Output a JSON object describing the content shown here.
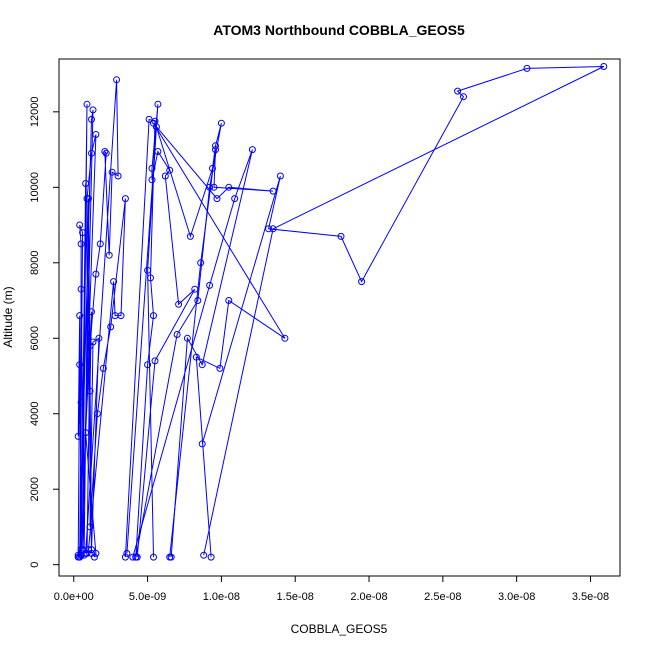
{
  "chart_data": {
    "type": "line",
    "title": "ATOM3 Northbound COBBLA_GEOS5",
    "xlabel": "COBBLA_GEOS5",
    "ylabel": "Altitude (m)",
    "xlim": [
      -1e-09,
      3.7e-08
    ],
    "ylim": [
      -300,
      13400
    ],
    "x_ticks": [
      0,
      5e-09,
      1e-08,
      1.5e-08,
      2e-08,
      2.5e-08,
      3e-08,
      3.5e-08
    ],
    "x_tick_labels": [
      "0.0e+00",
      "5.0e-09",
      "1.0e-08",
      "1.5e-08",
      "2.0e-08",
      "2.5e-08",
      "3.0e-08",
      "3.5e-08"
    ],
    "y_ticks": [
      0,
      2000,
      4000,
      6000,
      8000,
      10000,
      12000
    ],
    "y_tick_labels": [
      "0",
      "2000",
      "4000",
      "6000",
      "8000",
      "10000",
      "12000"
    ],
    "grid": false,
    "legend": "none",
    "colors": {
      "series": "#0000ff",
      "axis": "#000000",
      "background": "#ffffff"
    },
    "series": [
      {
        "values": [
          [
            3e-10,
            200
          ],
          [
            5e-10,
            400
          ],
          [
            5e-10,
            7300
          ],
          [
            7e-10,
            250
          ],
          [
            1e-09,
            9700
          ],
          [
            1.2e-09,
            300
          ],
          [
            8e-10,
            10100
          ],
          [
            5e-10,
            250
          ],
          [
            9e-10,
            12200
          ],
          [
            6e-10,
            400
          ],
          [
            1.3e-09,
            12050
          ],
          [
            1.2e-09,
            11800
          ],
          [
            4e-10,
            200
          ]
        ]
      },
      {
        "values": [
          [
            4e-10,
            200
          ],
          [
            6e-10,
            8800
          ],
          [
            4e-10,
            9000
          ],
          [
            5e-10,
            8500
          ],
          [
            5e-10,
            300
          ],
          [
            4e-10,
            6600
          ],
          [
            3e-10,
            3400
          ],
          [
            5e-10,
            4300
          ],
          [
            4e-10,
            5300
          ],
          [
            3e-10,
            250
          ]
        ]
      },
      {
        "values": [
          [
            5e-10,
            250
          ],
          [
            1.5e-09,
            11400
          ],
          [
            1.2e-09,
            10900
          ],
          [
            9e-10,
            9700
          ],
          [
            1.1e-09,
            4600
          ],
          [
            1.2e-09,
            6700
          ],
          [
            8e-10,
            3500
          ],
          [
            1.5e-09,
            300
          ],
          [
            1.4e-09,
            200
          ]
        ]
      },
      {
        "values": [
          [
            8e-10,
            300
          ],
          [
            2.9e-09,
            12850
          ],
          [
            3e-09,
            10300
          ],
          [
            2.6e-09,
            10400
          ],
          [
            2.4e-09,
            8200
          ],
          [
            2.1e-09,
            10950
          ],
          [
            2.2e-09,
            10900
          ],
          [
            1.8e-09,
            8500
          ],
          [
            1.5e-09,
            7700
          ],
          [
            1.1e-09,
            5800
          ],
          [
            9e-10,
            300
          ]
        ]
      },
      {
        "values": [
          [
            1e-09,
            400
          ],
          [
            2.7e-09,
            7500
          ],
          [
            2.8e-09,
            6600
          ],
          [
            3.2e-09,
            6600
          ],
          [
            3.5e-09,
            9700
          ],
          [
            2.5e-09,
            6300
          ],
          [
            2e-09,
            5200
          ],
          [
            1.6e-09,
            4000
          ],
          [
            1.1e-09,
            1000
          ],
          [
            1.3e-09,
            5900
          ],
          [
            1.7e-09,
            6000
          ],
          [
            1.2e-09,
            400
          ]
        ]
      },
      {
        "values": [
          [
            3.5e-09,
            200
          ],
          [
            5.1e-09,
            11800
          ],
          [
            5.5e-09,
            11750
          ],
          [
            5.2e-09,
            7600
          ],
          [
            5.4e-09,
            6600
          ],
          [
            5e-09,
            5300
          ],
          [
            4.2e-09,
            200
          ]
        ]
      },
      {
        "values": [
          [
            3.6e-09,
            300
          ],
          [
            5.7e-09,
            12200
          ],
          [
            5.3e-09,
            10500
          ],
          [
            5.3e-09,
            10200
          ],
          [
            5.7e-09,
            10950
          ],
          [
            6.5e-09,
            10450
          ],
          [
            6.2e-09,
            10300
          ],
          [
            7.1e-09,
            6900
          ],
          [
            8.2e-09,
            7300
          ],
          [
            5.5e-09,
            5400
          ],
          [
            4.3e-09,
            200
          ]
        ]
      },
      {
        "values": [
          [
            4.2e-09,
            200
          ],
          [
            7e-09,
            6100
          ],
          [
            8.4e-09,
            7000
          ],
          [
            9.2e-09,
            10000
          ],
          [
            1e-08,
            11700
          ],
          [
            9.6e-09,
            11100
          ],
          [
            9.4e-09,
            10500
          ],
          [
            7.9e-09,
            8700
          ],
          [
            5.6e-09,
            11600
          ],
          [
            5e-09,
            7800
          ],
          [
            5.4e-09,
            200
          ]
        ]
      },
      {
        "values": [
          [
            6.5e-09,
            200
          ],
          [
            8.6e-09,
            8000
          ],
          [
            9.6e-09,
            11000
          ],
          [
            9.5e-09,
            10000
          ],
          [
            1.35e-08,
            9900
          ],
          [
            1.05e-08,
            10000
          ],
          [
            9.7e-09,
            9700
          ],
          [
            5.4e-09,
            11700
          ],
          [
            1.43e-08,
            6000
          ],
          [
            1.05e-08,
            7000
          ],
          [
            9.9e-09,
            5200
          ],
          [
            8.3e-09,
            5500
          ],
          [
            9.3e-09,
            200
          ]
        ]
      },
      {
        "values": [
          [
            4e-09,
            200
          ],
          [
            9.2e-09,
            7400
          ],
          [
            1.09e-08,
            9700
          ],
          [
            1.21e-08,
            11000
          ],
          [
            8.7e-09,
            5300
          ],
          [
            7.7e-09,
            6000
          ],
          [
            6.6e-09,
            200
          ]
        ]
      },
      {
        "values": [
          [
            8.7e-09,
            3200
          ],
          [
            1.4e-08,
            10300
          ],
          [
            1.32e-08,
            8900
          ],
          [
            1.81e-08,
            8700
          ],
          [
            1.95e-08,
            7500
          ],
          [
            2.64e-08,
            12400
          ],
          [
            2.6e-08,
            12550
          ],
          [
            3.07e-08,
            13150
          ],
          [
            3.59e-08,
            13200
          ],
          [
            1.35e-08,
            8900
          ],
          [
            8.8e-09,
            250
          ]
        ]
      }
    ]
  }
}
